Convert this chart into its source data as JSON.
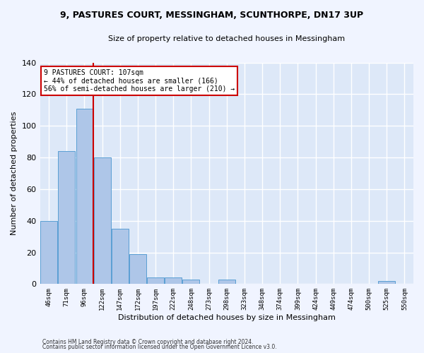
{
  "title": "9, PASTURES COURT, MESSINGHAM, SCUNTHORPE, DN17 3UP",
  "subtitle": "Size of property relative to detached houses in Messingham",
  "xlabel": "Distribution of detached houses by size in Messingham",
  "ylabel": "Number of detached properties",
  "categories": [
    "46sqm",
    "71sqm",
    "96sqm",
    "122sqm",
    "147sqm",
    "172sqm",
    "197sqm",
    "222sqm",
    "248sqm",
    "273sqm",
    "298sqm",
    "323sqm",
    "348sqm",
    "374sqm",
    "399sqm",
    "424sqm",
    "449sqm",
    "474sqm",
    "500sqm",
    "525sqm",
    "550sqm"
  ],
  "bar_heights": [
    40,
    84,
    111,
    80,
    35,
    19,
    4,
    4,
    3,
    0,
    3,
    0,
    0,
    0,
    0,
    0,
    0,
    0,
    0,
    2,
    0
  ],
  "bar_color": "#aec6e8",
  "bar_edge_color": "#5a9fd4",
  "background_color": "#dde8f8",
  "grid_color": "#ffffff",
  "red_line_x": 2.5,
  "annotation_line1": "9 PASTURES COURT: 107sqm",
  "annotation_line2": "← 44% of detached houses are smaller (166)",
  "annotation_line3": "56% of semi-detached houses are larger (210) →",
  "annotation_box_color": "#ffffff",
  "annotation_box_edge": "#cc0000",
  "red_line_color": "#cc0000",
  "ylim": [
    0,
    140
  ],
  "yticks": [
    0,
    20,
    40,
    60,
    80,
    100,
    120,
    140
  ],
  "footer1": "Contains HM Land Registry data © Crown copyright and database right 2024.",
  "footer2": "Contains public sector information licensed under the Open Government Licence v3.0.",
  "fig_width": 6.0,
  "fig_height": 5.0,
  "fig_dpi": 100
}
